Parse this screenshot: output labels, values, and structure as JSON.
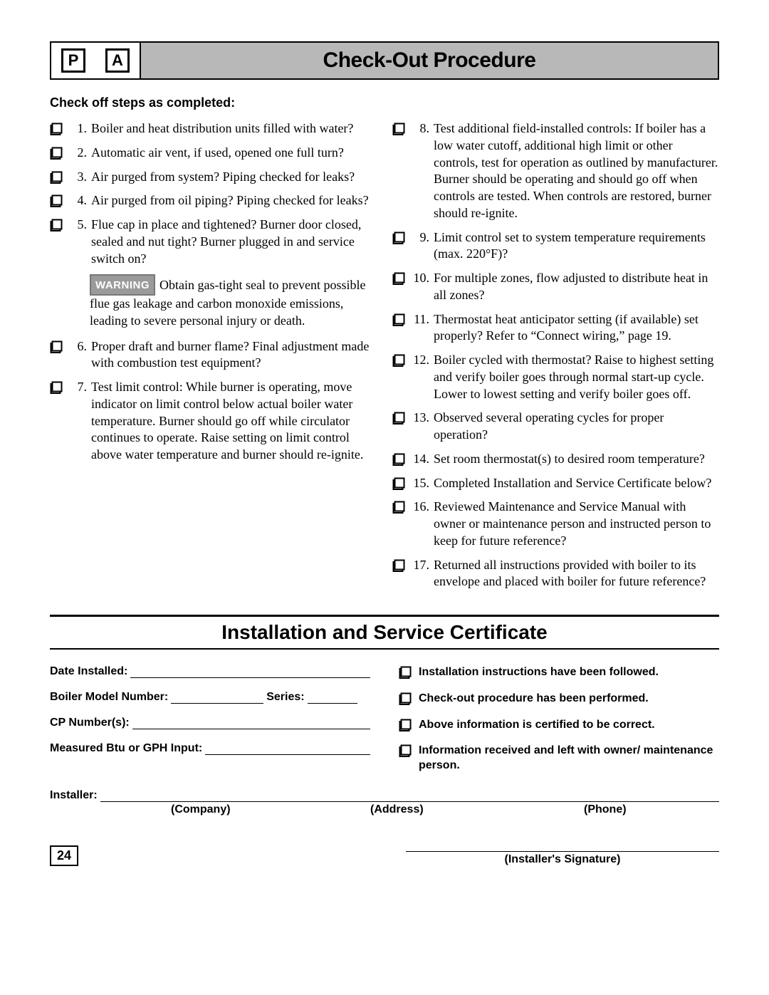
{
  "header": {
    "icon1": "P",
    "icon2": "A",
    "title": "Check-Out Procedure"
  },
  "intro": "Check off steps as completed:",
  "left_items": [
    {
      "n": "1.",
      "t": "Boiler and heat distribution units filled with water?"
    },
    {
      "n": "2.",
      "t": "Automatic air vent, if used, opened one full turn?"
    },
    {
      "n": "3.",
      "t": "Air purged from system? Piping checked for leaks?"
    },
    {
      "n": "4.",
      "t": "Air purged from oil piping? Piping checked for leaks?"
    },
    {
      "n": "5.",
      "t": "Flue cap in place and tightened? Burner door closed, sealed and nut tight? Burner plugged in and service switch on?"
    }
  ],
  "warning": {
    "label": "WARNING",
    "text": "Obtain gas-tight seal to prevent possible flue gas leakage and carbon monoxide emissions, leading to severe personal injury or death."
  },
  "left_items2": [
    {
      "n": "6.",
      "t": "Proper draft and burner flame? Final adjustment made with combustion test equipment?"
    },
    {
      "n": "7.",
      "t": "Test limit control: While burner is operating, move indicator on limit control below actual boiler water temperature. Burner should go off while circulator continues to operate. Raise setting on limit control above water temperature and burner should re-ignite."
    }
  ],
  "right_items": [
    {
      "n": "8.",
      "t": "Test additional field-installed controls: If boiler has a low water cutoff, additional high limit or other controls, test for operation as outlined by manufacturer. Burner should be operating and should go off when controls are tested. When controls are restored, burner should re-ignite."
    },
    {
      "n": "9.",
      "t": "Limit control set to system temperature requirements (max. 220°F)?"
    },
    {
      "n": "10.",
      "t": "For multiple zones, flow adjusted to distribute heat in all zones?"
    },
    {
      "n": "11.",
      "t": "Thermostat heat anticipator setting (if available) set properly? Refer to “Connect wiring,” page 19."
    },
    {
      "n": "12.",
      "t": "Boiler cycled with thermostat? Raise to highest setting and verify boiler goes through normal start-up cycle. Lower to lowest setting and verify boiler goes off."
    },
    {
      "n": "13.",
      "t": "Observed several operating cycles for proper operation?"
    },
    {
      "n": "14.",
      "t": "Set room thermostat(s) to desired room temperature?"
    },
    {
      "n": "15.",
      "t": "Completed Installation and Service Certificate below?"
    },
    {
      "n": "16.",
      "t": "Reviewed Maintenance and Service Manual with owner or maintenance person and instructed person to keep for future reference?"
    },
    {
      "n": "17.",
      "t": "Returned all instructions provided with boiler to its envelope and placed with boiler for future reference?"
    }
  ],
  "cert": {
    "title": "Installation and Service Certificate",
    "date_label": "Date Installed:",
    "model_label": "Boiler Model Number:",
    "series_label": "Series:",
    "cp_label": "CP Number(s):",
    "btu_label": "Measured Btu or GPH Input:",
    "checks": [
      "Installation instructions have been followed.",
      "Check-out procedure has been performed.",
      "Above information is certified to be correct.",
      "Information received and left with owner/ maintenance person."
    ],
    "installer_label": "Installer:",
    "col_company": "(Company)",
    "col_address": "(Address)",
    "col_phone": "(Phone)",
    "sig_label": "(Installer's Signature)"
  },
  "page_number": "24"
}
